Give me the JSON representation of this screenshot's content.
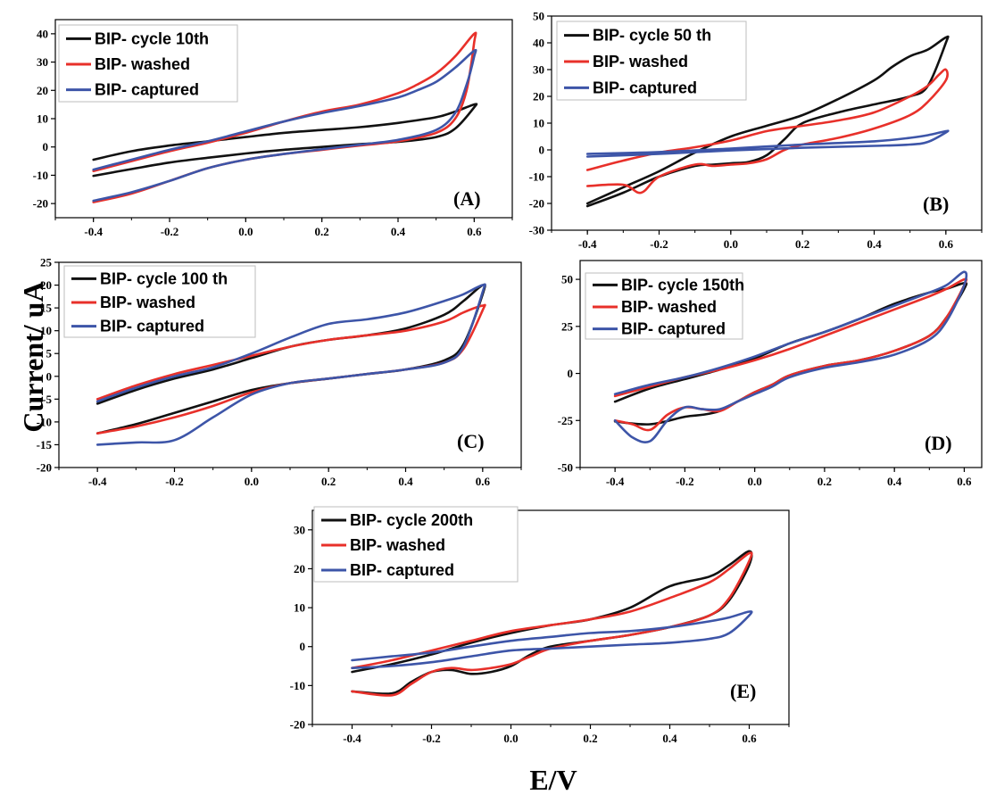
{
  "ylabel": "Current/ uA",
  "xlabel": "E/V",
  "colors": {
    "black": "#111111",
    "red": "#e8302a",
    "blue": "#3d55a8"
  },
  "chart_data": [
    {
      "type": "line",
      "panel_label": "(A)",
      "xlim": [
        -0.5,
        0.7
      ],
      "ylim": [
        -25,
        45
      ],
      "x_ticks": [
        -0.4,
        -0.2,
        0.0,
        0.2,
        0.4,
        0.6
      ],
      "x_tick_labels": [
        "-0.4",
        "-0.2",
        "0.0",
        "0.2",
        "0.4",
        "0.6"
      ],
      "y_ticks": [
        -20,
        -10,
        0,
        10,
        20,
        30,
        40
      ],
      "y_tick_labels": [
        "-20",
        "-10",
        "0",
        "10",
        "20",
        "30",
        "40"
      ],
      "legend_position": "top-left",
      "series": [
        {
          "name": "BIP- cycle 10th",
          "color": "black",
          "x": [
            -0.4,
            -0.3,
            -0.2,
            -0.1,
            0.0,
            0.1,
            0.2,
            0.3,
            0.4,
            0.5,
            0.55,
            0.6,
            0.6,
            0.55,
            0.5,
            0.4,
            0.3,
            0.2,
            0.1,
            0.0,
            -0.1,
            -0.2,
            -0.3,
            -0.4
          ],
          "y": [
            -4.5,
            -1.5,
            0.5,
            2.0,
            3.5,
            5.0,
            6.0,
            7.0,
            8.5,
            10.5,
            12.5,
            15.0,
            14.0,
            6.5,
            3.5,
            1.8,
            1.0,
            0.0,
            -1.0,
            -2.3,
            -3.8,
            -5.5,
            -7.8,
            -10.2
          ]
        },
        {
          "name": "BIP- washed",
          "color": "red",
          "x": [
            -0.4,
            -0.3,
            -0.2,
            -0.1,
            0.0,
            0.1,
            0.2,
            0.3,
            0.4,
            0.45,
            0.5,
            0.55,
            0.6,
            0.6,
            0.58,
            0.55,
            0.5,
            0.4,
            0.3,
            0.2,
            0.1,
            0.0,
            -0.1,
            -0.2,
            -0.3,
            -0.4
          ],
          "y": [
            -8.5,
            -5.0,
            -1.5,
            1.5,
            5.0,
            9.0,
            12.5,
            15.0,
            19.0,
            22.0,
            26.0,
            32.0,
            40.0,
            37.0,
            20.0,
            10.0,
            5.0,
            2.0,
            0.5,
            -1.0,
            -2.5,
            -4.5,
            -7.5,
            -12.0,
            -16.5,
            -19.5
          ]
        },
        {
          "name": "BIP- captured",
          "color": "blue",
          "x": [
            -0.4,
            -0.3,
            -0.2,
            -0.1,
            0.0,
            0.1,
            0.2,
            0.3,
            0.4,
            0.45,
            0.5,
            0.55,
            0.6,
            0.6,
            0.58,
            0.55,
            0.5,
            0.4,
            0.3,
            0.2,
            0.1,
            0.0,
            -0.1,
            -0.2,
            -0.3,
            -0.4
          ],
          "y": [
            -8.0,
            -4.5,
            -1.0,
            2.0,
            5.5,
            9.0,
            12.0,
            14.5,
            17.5,
            20.0,
            23.0,
            28.0,
            34.0,
            32.0,
            22.0,
            12.0,
            6.0,
            2.5,
            0.8,
            -0.8,
            -2.5,
            -4.5,
            -7.5,
            -12.0,
            -16.0,
            -19.0
          ]
        }
      ]
    },
    {
      "type": "line",
      "panel_label": "(B)",
      "xlim": [
        -0.5,
        0.7
      ],
      "ylim": [
        -30,
        50
      ],
      "x_ticks": [
        -0.4,
        -0.2,
        0.0,
        0.2,
        0.4,
        0.6
      ],
      "x_tick_labels": [
        "-0.4",
        "-0.2",
        "0.0",
        "0.2",
        "0.4",
        "0.6"
      ],
      "y_ticks": [
        -30,
        -20,
        -10,
        0,
        10,
        20,
        30,
        40,
        50
      ],
      "y_tick_labels": [
        "-30",
        "-20",
        "-10",
        "0",
        "10",
        "20",
        "30",
        "40",
        "50"
      ],
      "legend_position": "top-left",
      "series": [
        {
          "name": "BIP- cycle 50 th",
          "color": "black",
          "x": [
            -0.4,
            -0.3,
            -0.2,
            -0.1,
            0.0,
            0.1,
            0.2,
            0.3,
            0.4,
            0.45,
            0.5,
            0.55,
            0.6,
            0.6,
            0.55,
            0.5,
            0.4,
            0.3,
            0.2,
            0.15,
            0.1,
            0.05,
            0.0,
            -0.05,
            -0.1,
            -0.2,
            -0.3,
            -0.4
          ],
          "y": [
            -20.0,
            -14.0,
            -8.0,
            -1.0,
            5.0,
            9.0,
            13.0,
            19.0,
            26.0,
            31.0,
            35.0,
            37.5,
            42.0,
            40.0,
            24.0,
            20.0,
            17.0,
            14.0,
            10.0,
            4.0,
            -2.0,
            -4.5,
            -5.0,
            -5.5,
            -6.0,
            -10.0,
            -16.0,
            -21.0
          ]
        },
        {
          "name": "BIP- washed",
          "color": "red",
          "x": [
            -0.4,
            -0.3,
            -0.2,
            -0.1,
            0.0,
            0.1,
            0.2,
            0.3,
            0.4,
            0.5,
            0.55,
            0.58,
            0.6,
            0.6,
            0.55,
            0.5,
            0.4,
            0.3,
            0.2,
            0.15,
            0.1,
            0.05,
            0.0,
            -0.05,
            -0.1,
            -0.2,
            -0.25,
            -0.3,
            -0.4
          ],
          "y": [
            -7.5,
            -4.0,
            -1.0,
            1.0,
            3.5,
            7.0,
            9.0,
            11.0,
            14.0,
            20.0,
            24.0,
            28.0,
            30.0,
            26.0,
            18.0,
            13.0,
            8.0,
            4.5,
            2.0,
            0.0,
            -3.5,
            -5.0,
            -5.5,
            -6.0,
            -5.5,
            -10.0,
            -16.0,
            -13.0,
            -13.5
          ]
        },
        {
          "name": "BIP- captured",
          "color": "blue",
          "x": [
            -0.4,
            -0.2,
            0.0,
            0.2,
            0.4,
            0.5,
            0.55,
            0.6,
            0.6,
            0.55,
            0.5,
            0.4,
            0.2,
            0.0,
            -0.2,
            -0.4
          ],
          "y": [
            -1.5,
            -0.8,
            0.5,
            2.0,
            3.2,
            4.5,
            5.5,
            7.0,
            6.5,
            3.0,
            2.0,
            1.5,
            0.8,
            -0.2,
            -1.5,
            -2.5
          ]
        }
      ]
    },
    {
      "type": "line",
      "panel_label": "(C)",
      "xlim": [
        -0.5,
        0.7
      ],
      "ylim": [
        -20,
        25
      ],
      "x_ticks": [
        -0.4,
        -0.2,
        0.0,
        0.2,
        0.4,
        0.6
      ],
      "x_tick_labels": [
        "-0.4",
        "-0.2",
        "0.0",
        "0.2",
        "0.4",
        "0.6"
      ],
      "y_ticks": [
        -20,
        -15,
        -10,
        -5,
        0,
        5,
        10,
        15,
        20,
        25
      ],
      "y_tick_labels": [
        "-20",
        "-15",
        "-10",
        "-5",
        "0",
        "5",
        "10",
        "15",
        "20",
        "25"
      ],
      "legend_position": "top-left",
      "series": [
        {
          "name": "BIP- cycle 100 th",
          "color": "black",
          "x": [
            -0.4,
            -0.3,
            -0.2,
            -0.1,
            0.0,
            0.1,
            0.2,
            0.3,
            0.4,
            0.5,
            0.55,
            0.6,
            0.6,
            0.55,
            0.5,
            0.4,
            0.3,
            0.2,
            0.1,
            0.0,
            -0.1,
            -0.2,
            -0.3,
            -0.4
          ],
          "y": [
            -6.0,
            -3.0,
            -0.5,
            1.5,
            4.0,
            6.5,
            8.0,
            9.0,
            10.5,
            13.5,
            16.5,
            20.0,
            18.0,
            7.0,
            3.5,
            1.5,
            0.5,
            -0.5,
            -1.5,
            -3.0,
            -5.5,
            -8.0,
            -10.5,
            -12.5
          ]
        },
        {
          "name": "BIP- washed",
          "color": "red",
          "x": [
            -0.4,
            -0.3,
            -0.2,
            -0.1,
            0.0,
            0.1,
            0.2,
            0.3,
            0.4,
            0.5,
            0.55,
            0.6,
            0.6,
            0.55,
            0.5,
            0.4,
            0.3,
            0.2,
            0.1,
            0.0,
            -0.1,
            -0.2,
            -0.3,
            -0.4
          ],
          "y": [
            -5.0,
            -2.0,
            0.5,
            2.5,
            4.5,
            6.5,
            8.0,
            9.0,
            10.0,
            12.0,
            14.0,
            15.5,
            14.5,
            6.0,
            3.0,
            1.5,
            0.5,
            -0.5,
            -1.5,
            -3.5,
            -6.5,
            -9.0,
            -11.0,
            -12.5
          ]
        },
        {
          "name": "BIP- captured",
          "color": "blue",
          "x": [
            -0.4,
            -0.3,
            -0.2,
            -0.1,
            0.0,
            0.1,
            0.2,
            0.3,
            0.4,
            0.5,
            0.55,
            0.6,
            0.6,
            0.55,
            0.5,
            0.4,
            0.3,
            0.2,
            0.1,
            0.0,
            -0.1,
            -0.2,
            -0.3,
            -0.4
          ],
          "y": [
            -5.5,
            -2.5,
            0.0,
            2.0,
            5.0,
            8.5,
            11.5,
            12.5,
            14.0,
            16.5,
            18.0,
            20.0,
            18.5,
            6.5,
            3.0,
            1.5,
            0.5,
            -0.5,
            -1.5,
            -4.0,
            -9.0,
            -14.0,
            -14.5,
            -15.0
          ]
        }
      ]
    },
    {
      "type": "line",
      "panel_label": "(D)",
      "xlim": [
        -0.5,
        0.65
      ],
      "ylim": [
        -50,
        60
      ],
      "x_ticks": [
        -0.4,
        -0.2,
        0.0,
        0.2,
        0.4,
        0.6
      ],
      "x_tick_labels": [
        "-0.4",
        "-0.2",
        "0.0",
        "0.2",
        "0.4",
        "0.6"
      ],
      "y_ticks": [
        -50,
        -25,
        0,
        25,
        50
      ],
      "y_tick_labels": [
        "-50",
        "-25",
        "0",
        "25",
        "50"
      ],
      "legend_position": "top-left",
      "series": [
        {
          "name": "BIP- cycle 150th",
          "color": "black",
          "x": [
            -0.4,
            -0.3,
            -0.2,
            -0.1,
            0.0,
            0.1,
            0.2,
            0.3,
            0.4,
            0.5,
            0.55,
            0.6,
            0.6,
            0.55,
            0.5,
            0.4,
            0.3,
            0.2,
            0.1,
            0.05,
            0.0,
            -0.05,
            -0.1,
            -0.15,
            -0.2,
            -0.3,
            -0.4
          ],
          "y": [
            -15.0,
            -8.0,
            -3.0,
            2.0,
            8.0,
            16.0,
            22.0,
            29.0,
            37.0,
            43.0,
            45.0,
            48.0,
            45.0,
            30.0,
            20.0,
            12.0,
            7.0,
            4.0,
            -1.0,
            -6.0,
            -10.0,
            -15.0,
            -20.0,
            -22.0,
            -23.0,
            -27.0,
            -25.5
          ]
        },
        {
          "name": "BIP- washed",
          "color": "red",
          "x": [
            -0.4,
            -0.3,
            -0.2,
            -0.1,
            0.0,
            0.1,
            0.2,
            0.3,
            0.4,
            0.5,
            0.55,
            0.6,
            0.6,
            0.55,
            0.5,
            0.4,
            0.3,
            0.2,
            0.1,
            0.05,
            0.0,
            -0.05,
            -0.1,
            -0.15,
            -0.2,
            -0.25,
            -0.3,
            -0.35,
            -0.4
          ],
          "y": [
            -12.0,
            -7.0,
            -2.0,
            2.0,
            7.0,
            13.0,
            20.0,
            27.0,
            34.0,
            41.0,
            45.0,
            50.0,
            47.0,
            30.0,
            20.0,
            12.0,
            7.0,
            4.0,
            -1.0,
            -6.0,
            -10.0,
            -15.0,
            -20.0,
            -19.0,
            -18.0,
            -22.0,
            -30.0,
            -27.0,
            -25.0
          ]
        },
        {
          "name": "BIP- captured",
          "color": "blue",
          "x": [
            -0.4,
            -0.3,
            -0.2,
            -0.1,
            0.0,
            0.1,
            0.2,
            0.3,
            0.4,
            0.5,
            0.55,
            0.6,
            0.6,
            0.55,
            0.5,
            0.4,
            0.3,
            0.2,
            0.1,
            0.05,
            0.0,
            -0.05,
            -0.1,
            -0.15,
            -0.2,
            -0.25,
            -0.3,
            -0.35,
            -0.4
          ],
          "y": [
            -11.0,
            -6.0,
            -2.0,
            3.0,
            9.0,
            16.0,
            22.0,
            29.0,
            36.0,
            43.0,
            47.0,
            54.0,
            47.0,
            28.0,
            18.0,
            10.0,
            6.0,
            3.0,
            -2.0,
            -7.0,
            -11.0,
            -15.0,
            -19.0,
            -19.0,
            -18.0,
            -25.0,
            -36.0,
            -34.0,
            -25.0
          ]
        }
      ]
    },
    {
      "type": "line",
      "panel_label": "(E)",
      "xlim": [
        -0.5,
        0.7
      ],
      "ylim": [
        -20,
        35
      ],
      "x_ticks": [
        -0.4,
        -0.2,
        0.0,
        0.2,
        0.4,
        0.6
      ],
      "x_tick_labels": [
        "-0.4",
        "-0.2",
        "0.0",
        "0.2",
        "0.4",
        "0.6"
      ],
      "y_ticks": [
        -20,
        -10,
        0,
        10,
        20,
        30
      ],
      "y_tick_labels": [
        "-20",
        "-10",
        "0",
        "10",
        "20",
        "30"
      ],
      "legend_position": "top-left",
      "series": [
        {
          "name": "BIP- cycle 200th",
          "color": "black",
          "x": [
            -0.4,
            -0.3,
            -0.2,
            -0.1,
            0.0,
            0.1,
            0.2,
            0.3,
            0.4,
            0.5,
            0.55,
            0.6,
            0.6,
            0.55,
            0.5,
            0.4,
            0.3,
            0.2,
            0.1,
            0.05,
            0.0,
            -0.05,
            -0.1,
            -0.15,
            -0.2,
            -0.25,
            -0.3,
            -0.4
          ],
          "y": [
            -6.5,
            -4.5,
            -2.0,
            1.0,
            3.5,
            5.5,
            7.0,
            10.0,
            15.5,
            18.0,
            21.0,
            24.5,
            21.0,
            12.0,
            8.0,
            5.0,
            3.0,
            1.5,
            0.0,
            -2.0,
            -5.0,
            -6.5,
            -7.0,
            -6.0,
            -6.5,
            -9.0,
            -12.0,
            -11.5
          ]
        },
        {
          "name": "BIP- washed",
          "color": "red",
          "x": [
            -0.4,
            -0.3,
            -0.2,
            -0.1,
            0.0,
            0.1,
            0.2,
            0.3,
            0.4,
            0.5,
            0.55,
            0.6,
            0.6,
            0.55,
            0.5,
            0.4,
            0.3,
            0.2,
            0.1,
            0.05,
            0.0,
            -0.05,
            -0.1,
            -0.15,
            -0.2,
            -0.25,
            -0.3,
            -0.4
          ],
          "y": [
            -5.5,
            -3.5,
            -1.0,
            1.5,
            4.0,
            5.5,
            7.0,
            9.0,
            12.5,
            16.5,
            20.0,
            24.0,
            22.0,
            12.5,
            8.0,
            5.0,
            3.0,
            1.5,
            -0.5,
            -2.5,
            -4.5,
            -5.5,
            -6.0,
            -5.5,
            -6.5,
            -9.5,
            -12.5,
            -11.5
          ]
        },
        {
          "name": "BIP- captured",
          "color": "blue",
          "x": [
            -0.4,
            -0.3,
            -0.2,
            -0.1,
            0.0,
            0.1,
            0.2,
            0.3,
            0.4,
            0.5,
            0.55,
            0.6,
            0.6,
            0.55,
            0.5,
            0.4,
            0.3,
            0.2,
            0.1,
            0.0,
            -0.1,
            -0.2,
            -0.3,
            -0.4
          ],
          "y": [
            -3.5,
            -2.5,
            -1.5,
            0.0,
            1.5,
            2.5,
            3.5,
            4.0,
            5.0,
            6.5,
            7.5,
            9.0,
            8.0,
            3.5,
            2.0,
            1.0,
            0.5,
            0.0,
            -0.5,
            -1.0,
            -2.5,
            -4.0,
            -5.0,
            -5.5
          ]
        }
      ]
    }
  ]
}
